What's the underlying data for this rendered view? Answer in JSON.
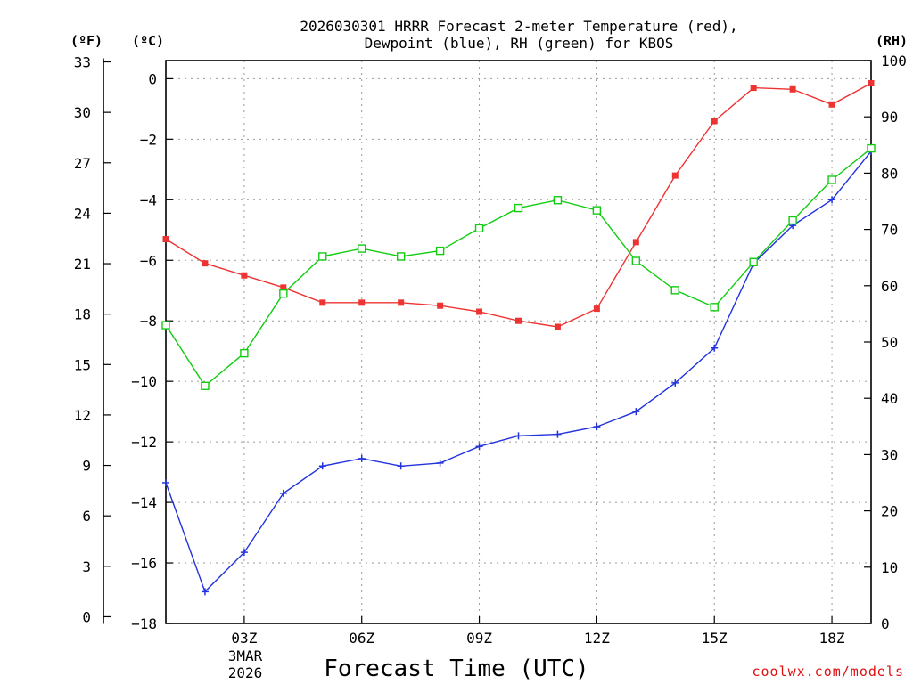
{
  "chart_data": {
    "type": "line",
    "title_lines": [
      "2026030301 HRRR Forecast 2-meter Temperature (red),",
      "Dewpoint (blue), RH (green) for KBOS"
    ],
    "xlabel": "Forecast Time (UTC)",
    "credit": "coolwx.com/models",
    "unit_labels": {
      "f": "(ºF)",
      "c": "(ºC)",
      "rh": "(RH)"
    },
    "x": [
      1,
      2,
      3,
      4,
      5,
      6,
      7,
      8,
      9,
      10,
      11,
      12,
      13,
      14,
      15,
      16,
      17,
      18,
      19
    ],
    "xlim": [
      1,
      19
    ],
    "x_ticks": [
      {
        "x": 3,
        "label": "03Z"
      },
      {
        "x": 6,
        "label": "06Z"
      },
      {
        "x": 9,
        "label": "09Z"
      },
      {
        "x": 12,
        "label": "12Z"
      },
      {
        "x": 15,
        "label": "15Z"
      },
      {
        "x": 18,
        "label": "18Z"
      }
    ],
    "date_label_lines": [
      "3MAR",
      "2026"
    ],
    "c_axis": {
      "lim": [
        -18,
        0.6
      ],
      "ticks": [
        0,
        -2,
        -4,
        -6,
        -8,
        -10,
        -12,
        -14,
        -16,
        -18
      ]
    },
    "f_axis": {
      "ticks": [
        33,
        30,
        27,
        24,
        21,
        18,
        15,
        12,
        9,
        6,
        3,
        0
      ]
    },
    "rh_axis": {
      "lim": [
        0,
        100
      ],
      "ticks": [
        0,
        10,
        20,
        30,
        40,
        50,
        60,
        70,
        80,
        90,
        100
      ]
    },
    "series": [
      {
        "name": "Temperature",
        "axis": "c",
        "color": "#ee3333",
        "marker": "filled-square",
        "values": [
          -5.3,
          -6.1,
          -6.5,
          -6.9,
          -7.4,
          -7.4,
          -7.4,
          -7.5,
          -7.7,
          -8.0,
          -8.2,
          -7.6,
          -5.4,
          -3.2,
          -1.4,
          -0.3,
          -0.35,
          -0.85,
          -0.15
        ]
      },
      {
        "name": "Dewpoint",
        "axis": "c",
        "color": "#2233dd",
        "marker": "plus",
        "values": [
          -13.35,
          -16.95,
          -15.65,
          -13.7,
          -12.8,
          -12.55,
          -12.8,
          -12.7,
          -12.15,
          -11.8,
          -11.75,
          -11.5,
          -11.0,
          -10.05,
          -8.9,
          -6.1,
          -4.85,
          -4.0,
          -2.4
        ]
      },
      {
        "name": "RH",
        "axis": "rh",
        "color": "#11cc11",
        "marker": "open-square",
        "values": [
          53,
          42.2,
          48,
          58.6,
          65.2,
          66.6,
          65.2,
          66.2,
          70.2,
          73.8,
          75.2,
          73.4,
          64.4,
          59.2,
          56.2,
          64.2,
          71.6,
          78.8,
          84.4
        ]
      }
    ]
  }
}
